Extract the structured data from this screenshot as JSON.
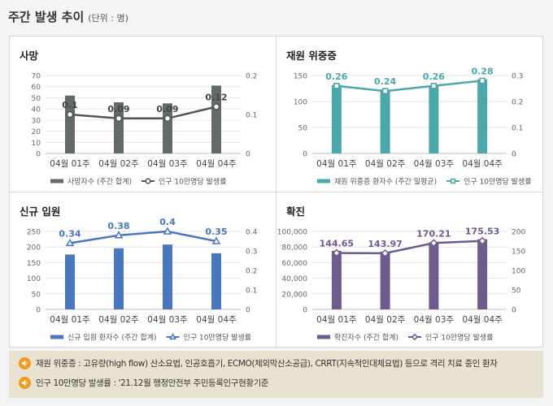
{
  "header": {
    "title": "주간 발생 추이",
    "unit": "(단위 : 명)"
  },
  "colors": {
    "death": "#636b67",
    "icu": "#4aa8aa",
    "admit": "#4a78c0",
    "confirmed": "#6f5a8e",
    "line": "#555555",
    "icon": "#f29a1e"
  },
  "chart_data": [
    {
      "type": "bar",
      "title": "사망",
      "categories": [
        "04월 01주",
        "04월 02주",
        "04월 03주",
        "04월 04주"
      ],
      "ylim": [
        0,
        70
      ],
      "yticks": [
        0,
        10,
        20,
        30,
        40,
        50,
        60,
        70
      ],
      "y2lim": [
        0,
        0.2
      ],
      "y2ticks": [
        0,
        0.1,
        0.2
      ],
      "series": [
        {
          "name": "사망자수 (주간 합계)",
          "type": "bar",
          "axis": "left",
          "values": [
            52,
            46,
            45,
            61
          ]
        },
        {
          "name": "인구 10만명당 발생률",
          "type": "line",
          "axis": "right",
          "values": [
            0.1,
            0.09,
            0.09,
            0.12
          ],
          "labels": [
            "0.1",
            "0.09",
            "0.09",
            "0.12"
          ]
        }
      ]
    },
    {
      "type": "bar",
      "title": "재원 위중증",
      "categories": [
        "04월 01주",
        "04월 02주",
        "04월 03주",
        "04월 04주"
      ],
      "ylim": [
        0,
        150
      ],
      "yticks": [
        0,
        50,
        100,
        150
      ],
      "y2lim": [
        0,
        0.3
      ],
      "y2ticks": [
        0,
        0.1,
        0.2,
        0.3
      ],
      "series": [
        {
          "name": "재원 위중증 환자수 (주간 일평균)",
          "type": "bar",
          "axis": "left",
          "values": [
            132,
            123,
            131,
            143
          ]
        },
        {
          "name": "인구 10만명당 발생률",
          "type": "line",
          "axis": "right",
          "values": [
            0.26,
            0.24,
            0.26,
            0.28
          ],
          "labels": [
            "0.26",
            "0.24",
            "0.26",
            "0.28"
          ]
        }
      ]
    },
    {
      "type": "bar",
      "title": "신규 입원",
      "categories": [
        "04월 01주",
        "04월 02주",
        "04월 03주",
        "04월 04주"
      ],
      "ylim": [
        0,
        250
      ],
      "yticks": [
        0,
        50,
        100,
        150,
        200,
        250
      ],
      "y2lim": [
        0,
        0.4
      ],
      "y2ticks": [
        0,
        0.1,
        0.2,
        0.3,
        0.4
      ],
      "series": [
        {
          "name": "신규 입원 환자수 (주간 합계)",
          "type": "bar",
          "axis": "left",
          "values": [
            176,
            196,
            208,
            180
          ]
        },
        {
          "name": "인구 10만명당 발생률",
          "type": "line",
          "axis": "right",
          "values": [
            0.34,
            0.38,
            0.4,
            0.35
          ],
          "labels": [
            "0.34",
            "0.38",
            "0.4",
            "0.35"
          ]
        }
      ]
    },
    {
      "type": "bar",
      "title": "확진",
      "categories": [
        "04월 01주",
        "04월 02주",
        "04월 03주",
        "04월 04주"
      ],
      "ylim": [
        0,
        100000
      ],
      "yticks": [
        0,
        20000,
        40000,
        60000,
        80000,
        100000
      ],
      "y2lim": [
        0,
        200
      ],
      "y2ticks": [
        0,
        50,
        100,
        150,
        200
      ],
      "series": [
        {
          "name": "확진자수 (주간 합계)",
          "type": "bar",
          "axis": "left",
          "values": [
            75000,
            74000,
            86000,
            90000
          ]
        },
        {
          "name": "인구 10만명당 발생률",
          "type": "line",
          "axis": "right",
          "values": [
            144.65,
            143.97,
            170.21,
            175.53
          ],
          "labels": [
            "144.65",
            "143.97",
            "170.21",
            "175.53"
          ]
        }
      ]
    }
  ],
  "notes": [
    {
      "icon": "speaker-icon",
      "text": "재원 위중증 : 고유량(high flow) 산소요법, 인공호흡기, ECMO(체외막산소공급), CRRT(지속적인대체요법) 등으로 격리 치료 중인 환자"
    },
    {
      "icon": "speaker-icon",
      "text": "인구 10만명당 발생률 : '21.12월 행정안전부 주민등록인구현황기준"
    }
  ]
}
